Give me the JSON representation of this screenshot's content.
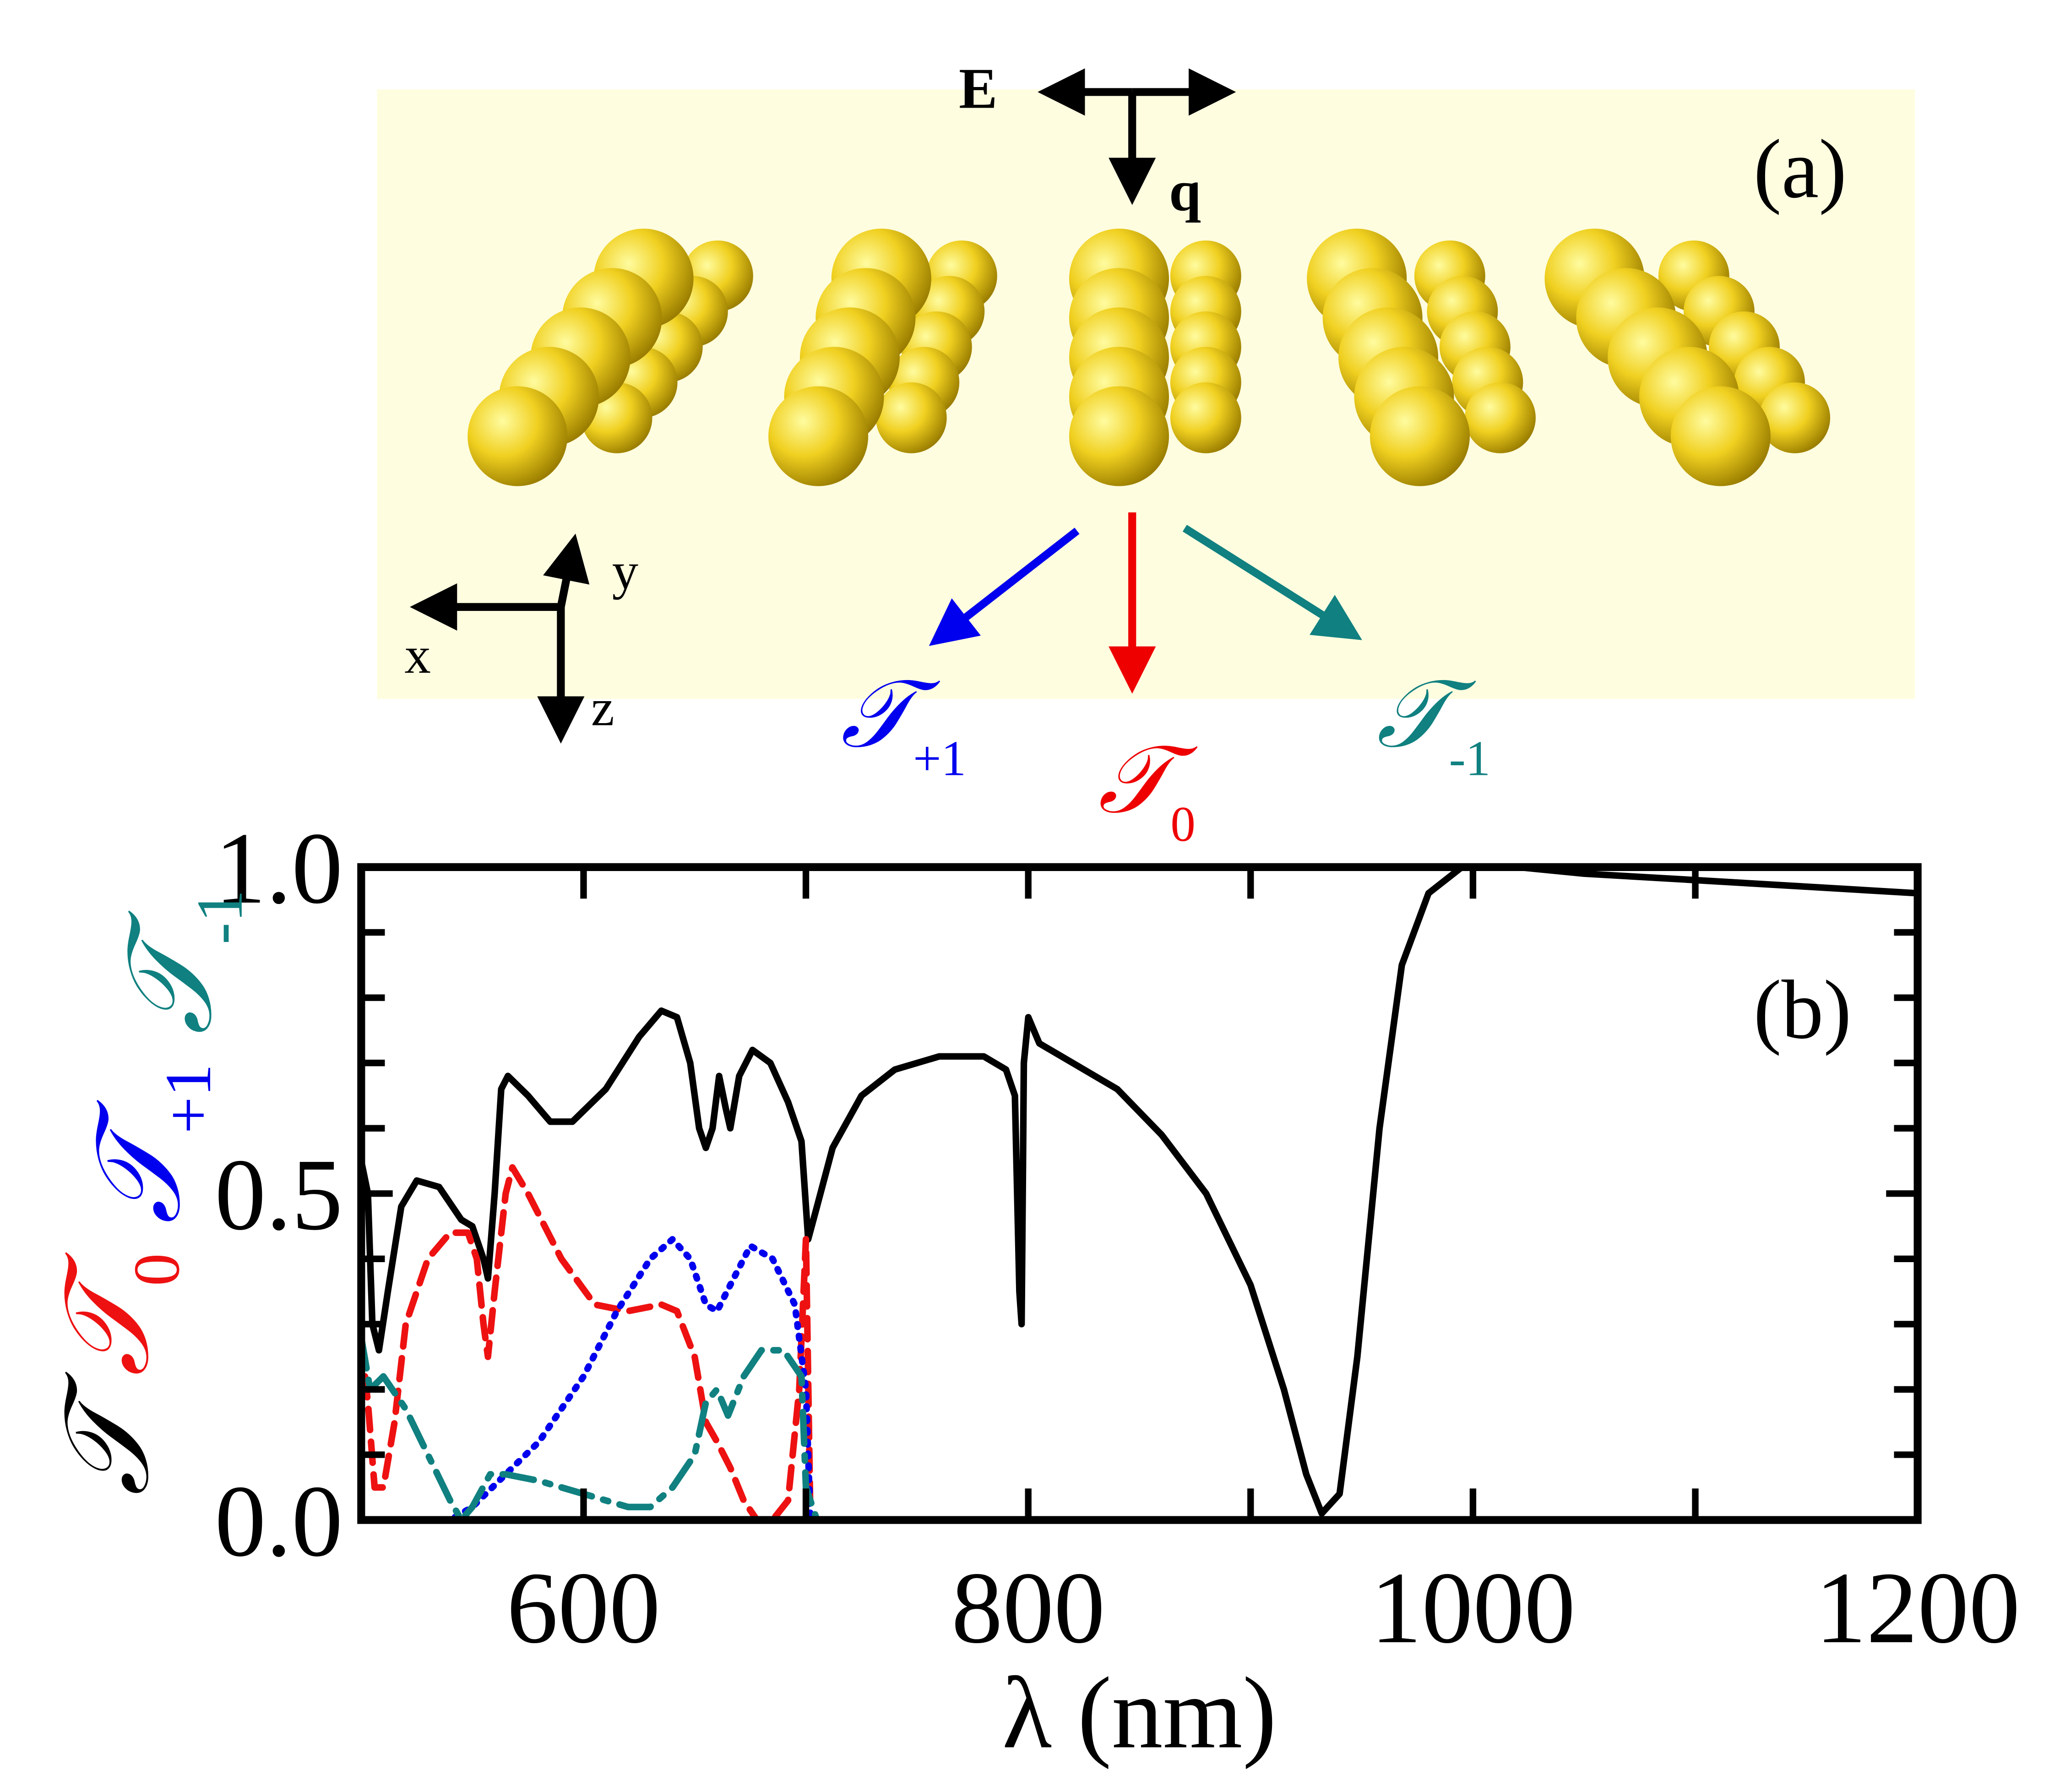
{
  "diagram": {
    "field_label": "E",
    "wavevector_label": "q",
    "panel_label": "(a)",
    "axes": {
      "x": "x",
      "y": "y",
      "z": "z"
    },
    "outputs": [
      {
        "symbol": "𝒯",
        "subscript": "+1",
        "color": "#0000ee"
      },
      {
        "symbol": "𝒯",
        "subscript": "0",
        "color": "#ee0000"
      },
      {
        "symbol": "𝒯",
        "subscript": "-1",
        "color": "#108080"
      }
    ]
  },
  "chart_data": {
    "type": "line",
    "xlabel": "λ (nm)",
    "panel_label": "(b)",
    "xlim": [
      500,
      1200
    ],
    "ylim": [
      0,
      1
    ],
    "xticks": [
      600,
      800,
      1000,
      1200
    ],
    "xminor_ticks": [
      500,
      700,
      900,
      1100
    ],
    "yticks": [
      {
        "value": 0,
        "label": "0.0"
      },
      {
        "value": 0.5,
        "label": "0.5"
      },
      {
        "value": 1,
        "label": "1.0"
      }
    ],
    "yminor_ticks": [
      0.1,
      0.2,
      0.3,
      0.4,
      0.6,
      0.7,
      0.8,
      0.9
    ],
    "series": [
      {
        "name": "𝒯",
        "color": "#000000",
        "dash": "solid",
        "x": [
          500,
          503,
          505,
          508,
          512,
          518,
          525,
          535,
          545,
          550,
          555,
          557,
          560,
          563,
          566,
          575,
          585,
          595,
          610,
          625,
          635,
          642,
          648,
          652,
          655,
          658,
          661,
          664,
          666,
          670,
          676,
          684,
          692,
          698,
          701,
          705,
          712,
          725,
          740,
          760,
          780,
          790,
          794,
          796,
          797,
          798,
          800,
          805,
          820,
          840,
          860,
          880,
          900,
          915,
          925,
          932,
          940,
          948,
          958,
          968,
          980,
          995,
          1020,
          1050,
          1100,
          1150,
          1200
        ],
        "values": [
          0.55,
          0.5,
          0.3,
          0.26,
          0.35,
          0.48,
          0.52,
          0.51,
          0.46,
          0.45,
          0.4,
          0.37,
          0.5,
          0.66,
          0.68,
          0.65,
          0.61,
          0.61,
          0.66,
          0.74,
          0.78,
          0.77,
          0.7,
          0.6,
          0.57,
          0.6,
          0.68,
          0.63,
          0.6,
          0.68,
          0.72,
          0.7,
          0.64,
          0.58,
          0.43,
          0.48,
          0.57,
          0.65,
          0.69,
          0.71,
          0.71,
          0.69,
          0.65,
          0.35,
          0.3,
          0.7,
          0.77,
          0.73,
          0.7,
          0.66,
          0.59,
          0.5,
          0.36,
          0.2,
          0.07,
          0.01,
          0.04,
          0.25,
          0.6,
          0.85,
          0.96,
          1.0,
          1.0,
          0.99,
          0.98,
          0.97,
          0.96
        ]
      },
      {
        "name": "𝒯",
        "subscript": "0",
        "color": "#ee1111",
        "dash": "dashed",
        "x": [
          500,
          503,
          506,
          510,
          515,
          520,
          530,
          540,
          548,
          552,
          555,
          557,
          560,
          565,
          568,
          575,
          590,
          605,
          620,
          635,
          642,
          650,
          655,
          660,
          666,
          672,
          678,
          685,
          692,
          697,
          700,
          702,
          1200
        ],
        "values": [
          0.27,
          0.18,
          0.05,
          0.05,
          0.15,
          0.3,
          0.4,
          0.44,
          0.44,
          0.4,
          0.3,
          0.25,
          0.35,
          0.5,
          0.54,
          0.5,
          0.4,
          0.33,
          0.32,
          0.33,
          0.32,
          0.25,
          0.15,
          0.12,
          0.08,
          0.03,
          0,
          0,
          0.03,
          0.2,
          0.43,
          0,
          0
        ]
      },
      {
        "name": "𝒯",
        "subscript": "+1",
        "color": "#0000ee",
        "dash": "dotted",
        "x": [
          500,
          520,
          540,
          550,
          565,
          580,
          600,
          615,
          630,
          640,
          648,
          655,
          660,
          666,
          675,
          685,
          695,
          700,
          702,
          1200
        ],
        "values": [
          0,
          0,
          0,
          0.02,
          0.07,
          0.12,
          0.22,
          0.32,
          0.4,
          0.43,
          0.4,
          0.33,
          0.32,
          0.36,
          0.42,
          0.4,
          0.33,
          0.2,
          0,
          0
        ]
      },
      {
        "name": "𝒯",
        "subscript": "-1",
        "color": "#108080",
        "dash": "dashdot",
        "x": [
          500,
          504,
          510,
          520,
          530,
          540,
          545,
          550,
          558,
          565,
          580,
          600,
          620,
          630,
          640,
          650,
          655,
          660,
          665,
          672,
          680,
          690,
          698,
          700,
          705,
          1200
        ],
        "values": [
          0.28,
          0.2,
          0.22,
          0.17,
          0.1,
          0.03,
          0,
          0.02,
          0.07,
          0.07,
          0.06,
          0.04,
          0.02,
          0.02,
          0.05,
          0.1,
          0.18,
          0.2,
          0.16,
          0.22,
          0.26,
          0.26,
          0.22,
          0.05,
          0,
          0
        ]
      }
    ]
  }
}
